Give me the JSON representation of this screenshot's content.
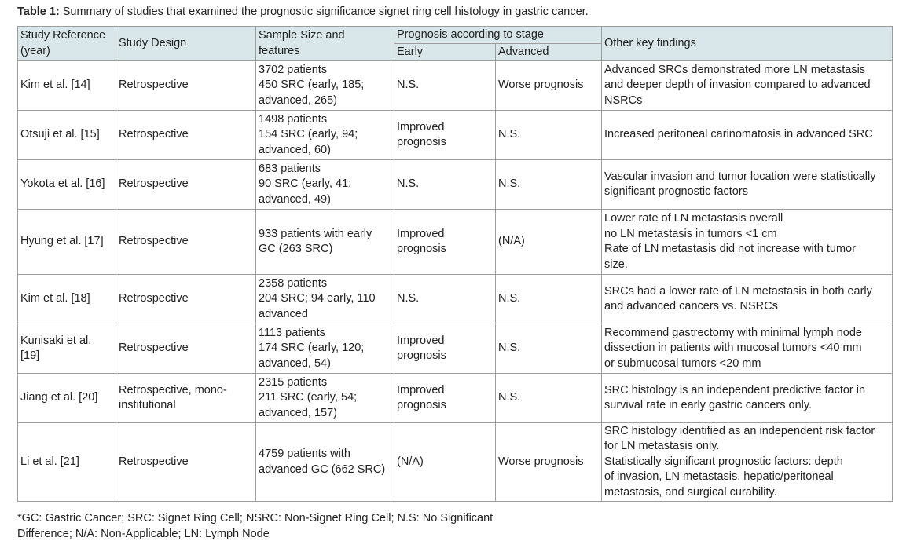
{
  "caption": {
    "label": "Table 1:",
    "text": " Summary of studies that examined the prognostic significance signet ring cell histology in gastric cancer."
  },
  "header": {
    "study_reference": [
      "Study Reference",
      "(year)"
    ],
    "study_design": "Study Design",
    "sample_size": [
      "Sample Size and",
      "features"
    ],
    "prognosis_group": "Prognosis according to stage",
    "early": "Early",
    "advanced": "Advanced",
    "other_findings": "Other key findings"
  },
  "rows": [
    {
      "reference": [
        "Kim et al. [14]"
      ],
      "design": [
        "Retrospective"
      ],
      "sample": [
        "3702 patients",
        "450 SRC (early, 185;",
        "advanced, 265)"
      ],
      "early": [
        "N.S."
      ],
      "advanced": [
        "Worse prognosis"
      ],
      "findings": [
        "Advanced SRCs demonstrated more LN metastasis",
        "and deeper depth of invasion compared to advanced",
        "NSRCs"
      ]
    },
    {
      "reference": [
        "Otsuji et al. [15]"
      ],
      "design": [
        "Retrospective"
      ],
      "sample": [
        "1498 patients",
        "154 SRC (early, 94;",
        "advanced, 60)"
      ],
      "early": [
        "Improved",
        "prognosis"
      ],
      "advanced": [
        "N.S."
      ],
      "findings": [
        "Increased peritoneal carinomatosis in advanced SRC"
      ]
    },
    {
      "reference": [
        "Yokota et al. [16]"
      ],
      "design": [
        "Retrospective"
      ],
      "sample": [
        "683 patients",
        "90 SRC (early, 41;",
        "advanced, 49)"
      ],
      "early": [
        "N.S."
      ],
      "advanced": [
        "N.S."
      ],
      "findings": [
        "Vascular invasion and tumor location were statistically",
        "significant prognostic factors"
      ]
    },
    {
      "reference": [
        "Hyung et al. [17]"
      ],
      "design": [
        "Retrospective"
      ],
      "sample": [
        "933 patients with early",
        "GC (263 SRC)"
      ],
      "early": [
        "Improved",
        "prognosis"
      ],
      "advanced": [
        "(N/A)"
      ],
      "findings": [
        "Lower rate of LN metastasis overall",
        "no LN metastasis in tumors <1 cm",
        "Rate of LN metastasis did not increase with tumor",
        "size."
      ]
    },
    {
      "reference": [
        "Kim et al. [18]"
      ],
      "design": [
        "Retrospective"
      ],
      "sample": [
        "2358 patients",
        "204 SRC; 94 early, 110",
        "advanced"
      ],
      "early": [
        "N.S."
      ],
      "advanced": [
        "N.S."
      ],
      "findings": [
        "SRCs had a lower rate of LN metastasis in both early",
        "and advanced cancers vs. NSRCs"
      ]
    },
    {
      "reference": [
        "Kunisaki et al.",
        "[19]"
      ],
      "design": [
        "Retrospective"
      ],
      "sample": [
        "1113 patients",
        "174 SRC (early, 120;",
        "advanced, 54)"
      ],
      "early": [
        "Improved",
        "prognosis"
      ],
      "advanced": [
        "N.S."
      ],
      "findings": [
        "Recommend gastrectomy with minimal lymph node",
        "dissection in patients with mucosal tumors <40  mm",
        "or submucosal tumors <20  mm"
      ]
    },
    {
      "reference": [
        "Jiang et al. [20]"
      ],
      "design": [
        "Retrospective, mono-",
        "institutional"
      ],
      "sample": [
        "2315 patients",
        "211 SRC (early, 54;",
        "advanced, 157)"
      ],
      "early": [
        "Improved",
        "prognosis"
      ],
      "advanced": [
        "N.S."
      ],
      "findings": [
        "SRC histology is an independent predictive factor in",
        "survival rate in early gastric cancers only."
      ]
    },
    {
      "reference": [
        "Li et al. [21]"
      ],
      "design": [
        "Retrospective"
      ],
      "sample": [
        "4759 patients with",
        "advanced GC (662 SRC)"
      ],
      "early": [
        "(N/A)"
      ],
      "advanced": [
        "Worse prognosis"
      ],
      "findings": [
        "SRC histology identified as an independent risk factor",
        "for LN metastasis only.",
        "Statistically significant prognostic factors: depth",
        "of invasion, LN metastasis, hepatic/peritoneal",
        "metastasis, and surgical curability."
      ]
    }
  ],
  "footnote": [
    "*GC: Gastric Cancer; SRC: Signet Ring Cell; NSRC: Non-Signet Ring Cell; N.S: No Significant",
    "Difference; N/A: Non-Applicable; LN: Lymph Node"
  ]
}
